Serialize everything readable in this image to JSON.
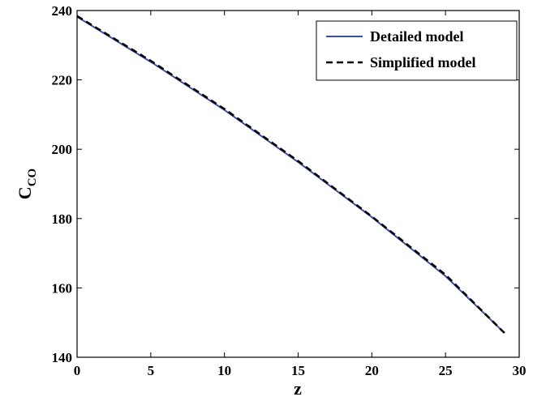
{
  "chart_data": {
    "type": "line",
    "xlabel": "z",
    "ylabel_main": "C",
    "ylabel_sub": "CO",
    "xlim": [
      0,
      30
    ],
    "ylim": [
      140,
      240
    ],
    "xticks": [
      0,
      5,
      10,
      15,
      20,
      25,
      30
    ],
    "yticks": [
      140,
      160,
      180,
      200,
      220,
      240
    ],
    "grid": false,
    "legend_position": "top-right",
    "series": [
      {
        "name": "Detailed model",
        "color": "#3c4fa8",
        "style": "solid",
        "x": [
          0,
          5,
          10,
          15,
          20,
          25,
          29
        ],
        "y": [
          238.2,
          225.2,
          211.3,
          196.3,
          180.4,
          163.4,
          147.0
        ]
      },
      {
        "name": "Simplified model",
        "color": "#000000",
        "style": "dashed",
        "x": [
          0,
          5,
          10,
          15,
          20,
          25,
          29
        ],
        "y": [
          238.4,
          225.5,
          211.6,
          196.6,
          180.6,
          163.8,
          147.0
        ]
      }
    ]
  }
}
